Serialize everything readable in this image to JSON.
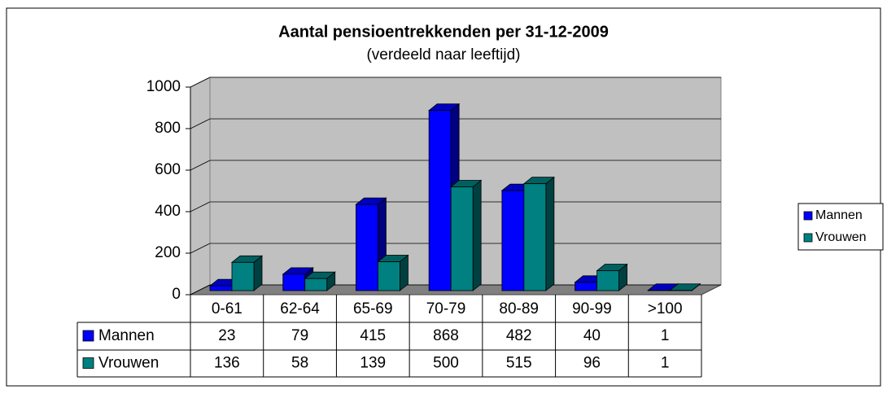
{
  "chart_data": {
    "type": "bar3d",
    "title": "Aantal pensioentrekkenden per 31-12-2009",
    "subtitle": "(verdeeld naar leeftijd)",
    "categories": [
      "0-61",
      "62-64",
      "65-69",
      "70-79",
      "80-89",
      "90-99",
      ">100"
    ],
    "series": [
      {
        "name": "Mannen",
        "color": "#0000ff",
        "values": [
          23,
          79,
          415,
          868,
          482,
          40,
          1
        ]
      },
      {
        "name": "Vrouwen",
        "color": "#008080",
        "values": [
          136,
          58,
          139,
          500,
          515,
          96,
          1
        ]
      }
    ],
    "ylim": [
      0,
      1000
    ],
    "yticks": [
      0,
      200,
      400,
      600,
      800,
      1000
    ],
    "grid": true,
    "legend": "right",
    "data_table": true
  }
}
